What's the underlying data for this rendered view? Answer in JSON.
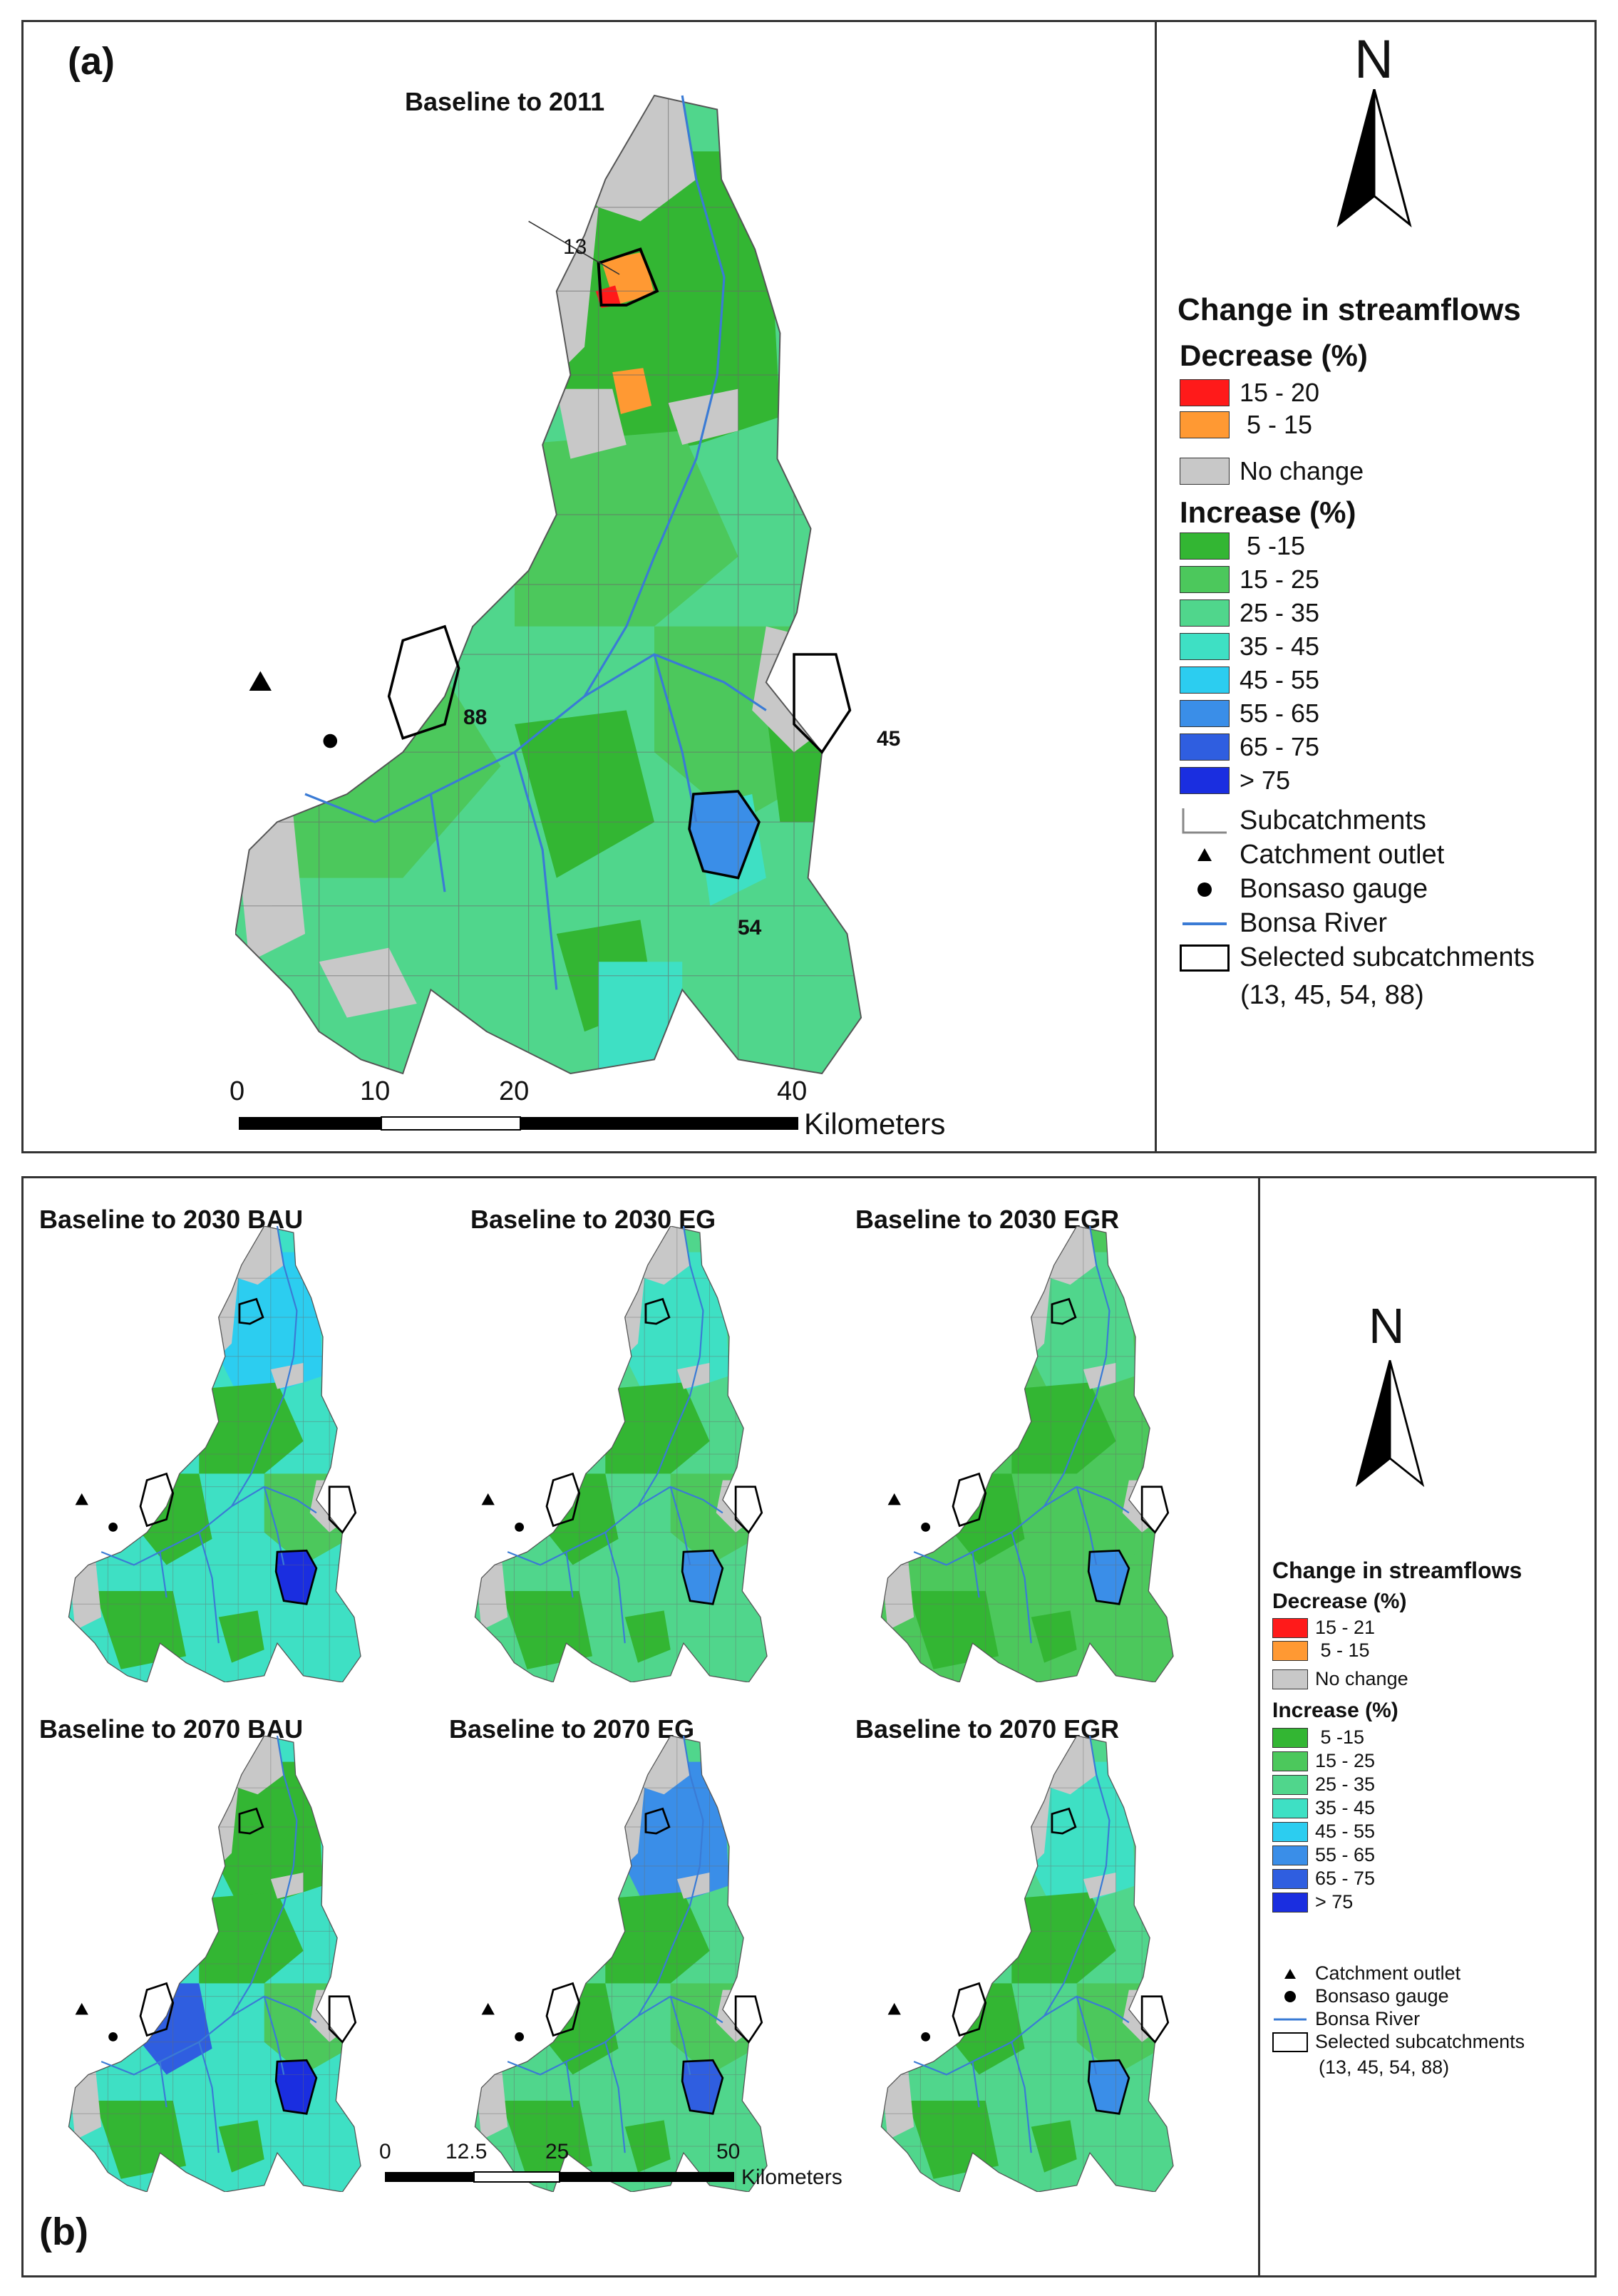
{
  "panel_a": {
    "letter": "(a)",
    "title": "Baseline to 2011",
    "labels": {
      "s13": "13",
      "s88": "88",
      "s45": "45",
      "s54": "54"
    },
    "scale": {
      "ticks": [
        "0",
        "10",
        "20",
        "40"
      ],
      "unit": "Kilometers"
    },
    "north": "N"
  },
  "legend_a": {
    "heading": "Change in streamflows",
    "decrease_heading": "Decrease (%)",
    "decrease": [
      {
        "label": "15 - 20",
        "color": "#ff1a1a"
      },
      {
        "label": " 5 - 15",
        "color": "#ff9933"
      }
    ],
    "no_change": {
      "label": "No change",
      "color": "#c8c8c8"
    },
    "increase_heading": "Increase (%)",
    "increase": [
      {
        "label": " 5 -15",
        "color": "#33b633"
      },
      {
        "label": "15 - 25",
        "color": "#4cc85c"
      },
      {
        "label": "25 - 35",
        "color": "#50d68c"
      },
      {
        "label": "35 - 45",
        "color": "#3ee0c4"
      },
      {
        "label": "45 - 55",
        "color": "#2ccdf0"
      },
      {
        "label": "55 - 65",
        "color": "#3a8ee8"
      },
      {
        "label": "65 - 75",
        "color": "#2f5ee0"
      },
      {
        "label": "> 75",
        "color": "#1a2ee0"
      }
    ],
    "symbols": {
      "subcatchments": "Subcatchments",
      "outlet": "Catchment outlet",
      "gauge": "Bonsaso gauge",
      "river": "Bonsa River",
      "selected": "Selected subcatchments",
      "selected_ids": "(13, 45, 54, 88)"
    }
  },
  "panel_b": {
    "letter": "(b)",
    "maps": [
      {
        "title": "Baseline to 2030 BAU"
      },
      {
        "title": "Baseline to 2030 EG"
      },
      {
        "title": "Baseline to 2030 EGR"
      },
      {
        "title": "Baseline to 2070 BAU"
      },
      {
        "title": "Baseline to 2070 EG"
      },
      {
        "title": "Baseline to 2070 EGR"
      }
    ],
    "scale": {
      "ticks": [
        "0",
        "12.5",
        "25",
        "50"
      ],
      "unit": "Kilometers"
    },
    "north": "N"
  },
  "legend_b": {
    "heading": "Change in streamflows",
    "decrease_heading": "Decrease (%)",
    "decrease": [
      {
        "label": "15 - 21",
        "color": "#ff1a1a"
      },
      {
        "label": " 5 - 15",
        "color": "#ff9933"
      }
    ],
    "no_change": {
      "label": "No change",
      "color": "#c8c8c8"
    },
    "increase_heading": "Increase (%)",
    "increase": [
      {
        "label": " 5 -15",
        "color": "#33b633"
      },
      {
        "label": "15 - 25",
        "color": "#4cc85c"
      },
      {
        "label": "25 - 35",
        "color": "#50d68c"
      },
      {
        "label": "35 - 45",
        "color": "#3ee0c4"
      },
      {
        "label": "45 - 55",
        "color": "#2ccdf0"
      },
      {
        "label": "55 - 65",
        "color": "#3a8ee8"
      },
      {
        "label": "65 - 75",
        "color": "#2f5ee0"
      },
      {
        "label": "> 75",
        "color": "#1a2ee0"
      }
    ],
    "symbols": {
      "outlet": "Catchment outlet",
      "gauge": "Bonsaso gauge",
      "river": "Bonsa River",
      "selected": "Selected subcatchments",
      "selected_ids": "(13, 45, 54, 88)"
    }
  }
}
